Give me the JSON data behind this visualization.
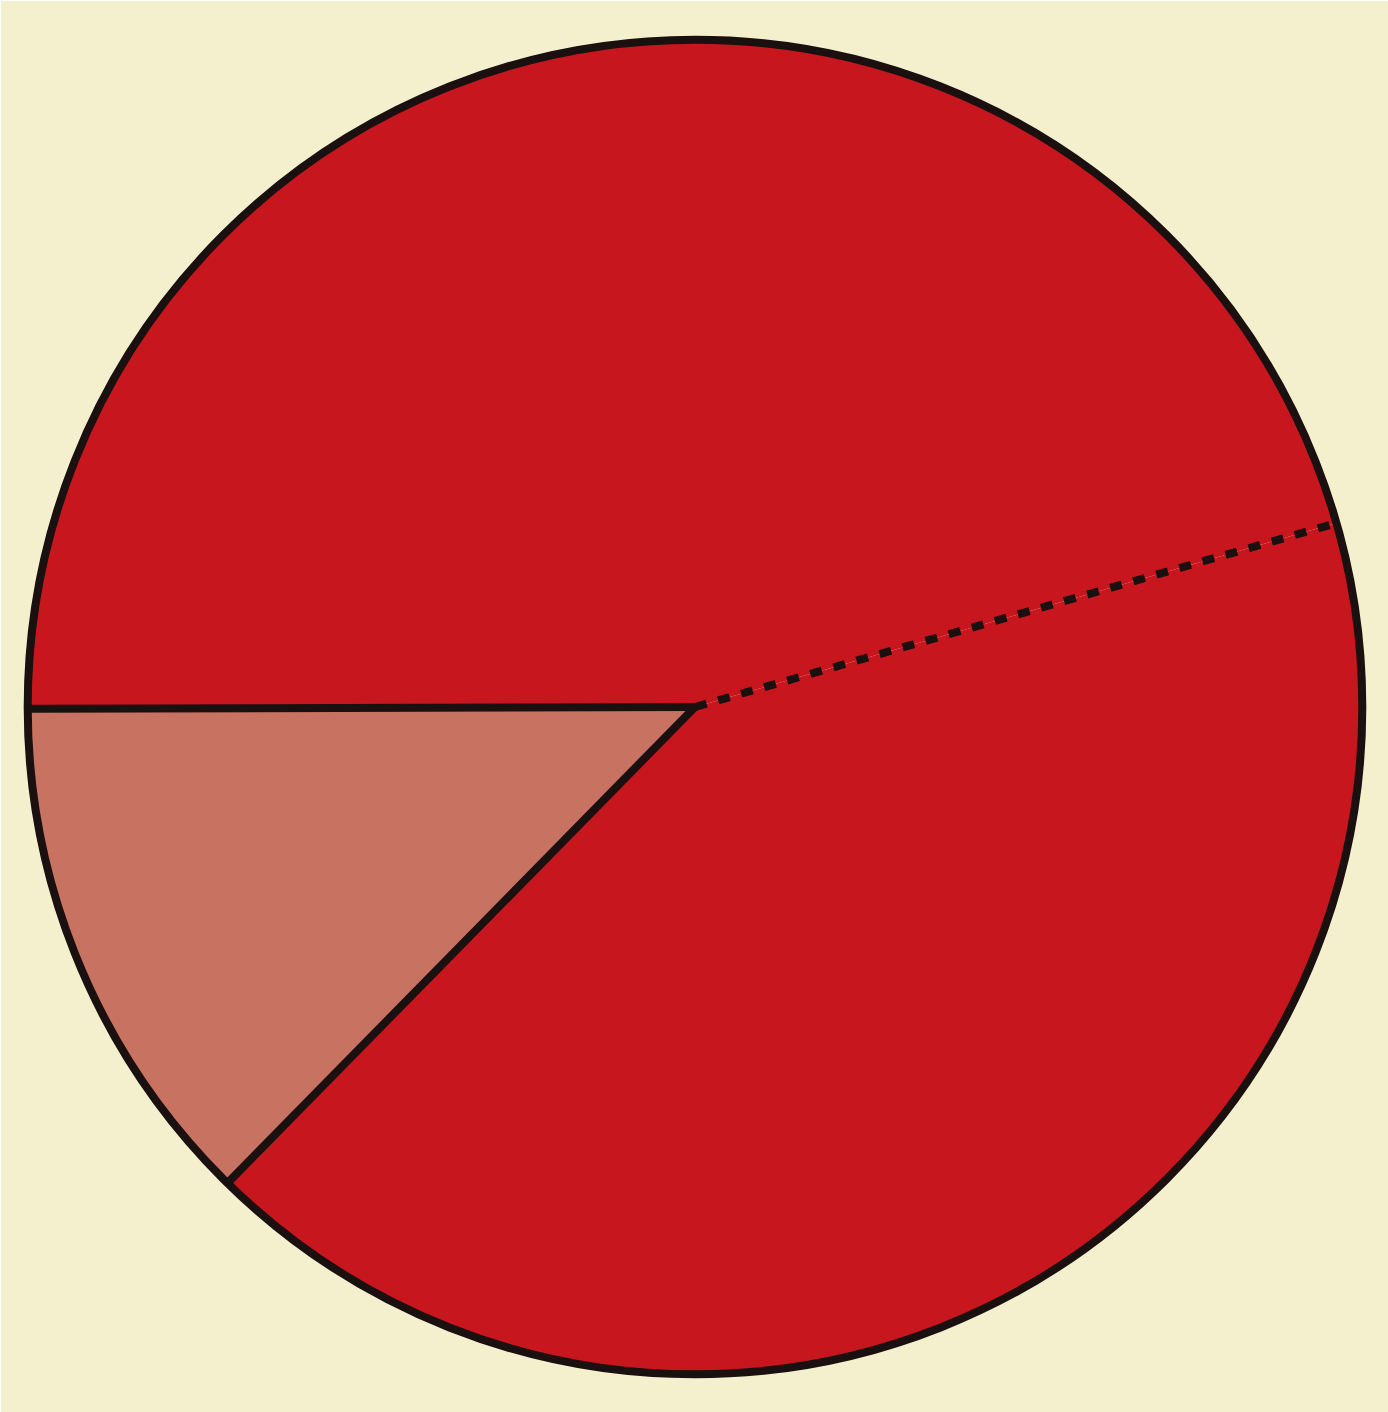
{
  "chart_data": {
    "type": "pie",
    "categories": [
      null,
      null,
      null
    ],
    "values": [
      45.6,
      12.6,
      41.8
    ],
    "colors": [
      "#c8161e",
      "#c87262",
      "#c8161e"
    ]
  }
}
